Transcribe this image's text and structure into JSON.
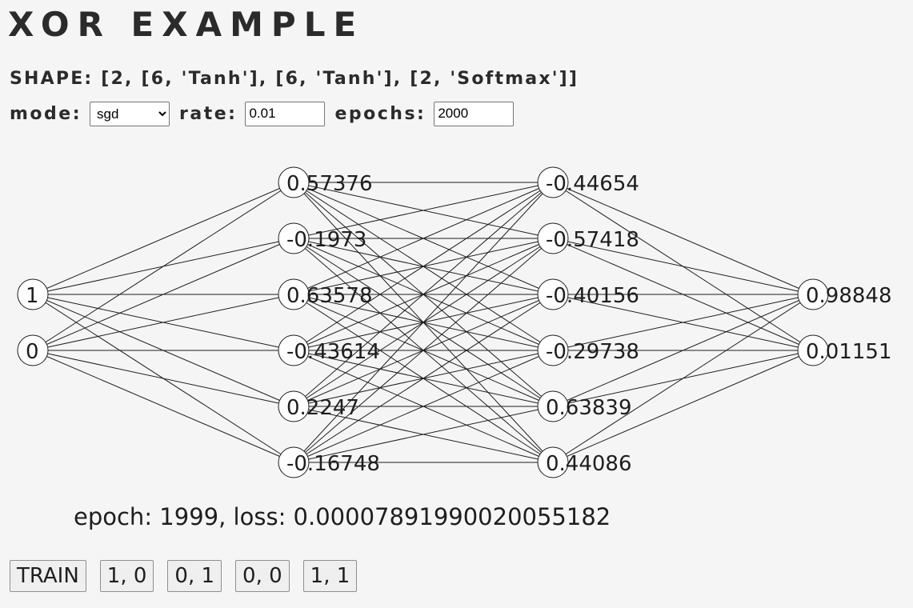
{
  "title": "XOR EXAMPLE",
  "shape_text": "SHAPE: [2, [6, 'Tanh'], [6, 'Tanh'], [2, 'Softmax']]",
  "controls": {
    "mode_label": "mode:",
    "mode_value": "sgd",
    "rate_label": "rate:",
    "rate_value": "0.01",
    "epochs_label": "epochs:",
    "epochs_value": "2000"
  },
  "network": {
    "layers": [
      [
        "1",
        "0"
      ],
      [
        "0.57376",
        "-0.1973",
        "0.63578",
        "-0.43614",
        "0.2247",
        "-0.16748"
      ],
      [
        "-0.44654",
        "-0.57418",
        "-0.40156",
        "-0.29738",
        "0.63839",
        "0.44086"
      ],
      [
        "0.98848",
        "0.01151"
      ]
    ]
  },
  "status": "epoch: 1999, loss: 0.00007891990020055182",
  "buttons": [
    "TRAIN",
    "1, 0",
    "0, 1",
    "0, 0",
    "1, 1"
  ]
}
